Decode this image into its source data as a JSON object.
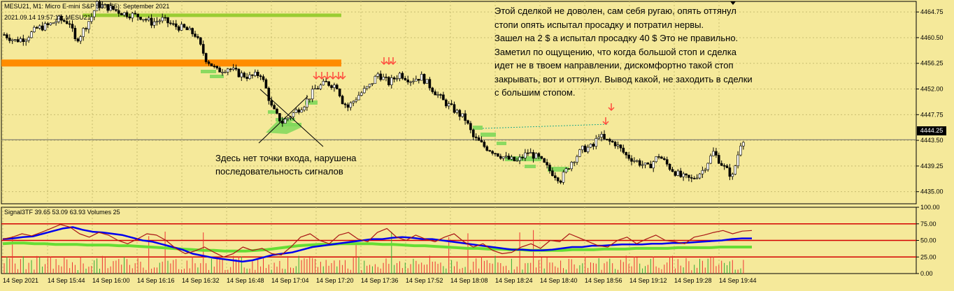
{
  "header": {
    "symbol_line": "MESU21, M1:  Micro E-mini S&P 500 ($5): September 2021",
    "time_line": "2021.09.14 19:57:13; MESU21"
  },
  "comment": {
    "lines": [
      "Этой сделкой не доволен, сам себя ругаю, опять оттянул",
      "стопи опять испытал просадку и потратил нервы.",
      "Зашел на 2 $ а испытал просадку 40 $ Это не правильно.",
      "Заметил по ощущению, что когда большой стоп и сделка",
      "идет не в твоем направлении, дискомфортно такой стоп",
      "закрывать, вот и оттянул.  Вывод какой, не заходить в сделки",
      "с большим стопом."
    ]
  },
  "annotation": {
    "lines": [
      "Здесь нет точки входа, нарушена",
      "последовательность сигналов"
    ]
  },
  "indicator_label": "Signal3TF 39.65 53.09 63.93 Volumes 25",
  "current_price": "4444.25",
  "colors": {
    "background": "#f5e99a",
    "candle": "#000000",
    "hline_green": "#9acd32",
    "hline_orange": "#ff8c00",
    "signal_box": "#7fd85a",
    "arrow": "#ff4a3d",
    "ind_red": "#d40000",
    "ind_blue": "#0000ee",
    "ind_green": "#66dd33",
    "ind_brown": "#aa1515",
    "volume": "#ee3333",
    "volume_green": "#33aa33"
  },
  "chart_data": [
    {
      "type": "candlestick",
      "title": "MESU21, M1",
      "ylim": [
        4433.0,
        4466.5
      ],
      "y_ticks": [
        "4464.75",
        "4460.50",
        "4456.25",
        "4452.00",
        "4447.75",
        "4443.50",
        "4439.25",
        "4435.00"
      ],
      "x_ticks": [
        "14 Sep 2021",
        "14 Sep 15:44",
        "14 Sep 16:00",
        "14 Sep 16:16",
        "14 Sep 16:32",
        "14 Sep 16:48",
        "14 Sep 17:04",
        "14 Sep 17:20",
        "14 Sep 17:36",
        "14 Sep 17:52",
        "14 Sep 18:08",
        "14 Sep 18:24",
        "14 Sep 18:40",
        "14 Sep 18:56",
        "14 Sep 19:12",
        "14 Sep 19:28",
        "14 Sep 19:44"
      ],
      "close_path": [
        [
          0,
          4461
        ],
        [
          4,
          4460
        ],
        [
          8,
          4460.5
        ],
        [
          12,
          4462
        ],
        [
          16,
          4462.5
        ],
        [
          20,
          4463.5
        ],
        [
          24,
          4463
        ],
        [
          26,
          4460
        ],
        [
          28,
          4461
        ],
        [
          32,
          4464
        ],
        [
          34,
          4466
        ],
        [
          38,
          4465.5
        ],
        [
          44,
          4464.5
        ],
        [
          50,
          4464
        ],
        [
          54,
          4463
        ],
        [
          58,
          4463.5
        ],
        [
          62,
          4462.5
        ],
        [
          66,
          4462
        ],
        [
          70,
          4461
        ],
        [
          72,
          4459
        ],
        [
          74,
          4457
        ],
        [
          78,
          4455
        ],
        [
          82,
          4455.5
        ],
        [
          86,
          4454.5
        ],
        [
          90,
          4454
        ],
        [
          94,
          4454.5
        ],
        [
          96,
          4452
        ],
        [
          98,
          4449
        ],
        [
          100,
          4447.5
        ],
        [
          102,
          4446.5
        ],
        [
          106,
          4448
        ],
        [
          110,
          4449.5
        ],
        [
          114,
          4452
        ],
        [
          118,
          4453
        ],
        [
          122,
          4452.5
        ],
        [
          124,
          4450
        ],
        [
          126,
          4449
        ],
        [
          130,
          4451
        ],
        [
          134,
          4452.5
        ],
        [
          137,
          4454.5
        ],
        [
          141,
          4453
        ],
        [
          145,
          4454.5
        ],
        [
          149,
          4453.5
        ],
        [
          153,
          4454
        ],
        [
          157,
          4452
        ],
        [
          161,
          4450
        ],
        [
          165,
          4448.5
        ],
        [
          169,
          4447
        ],
        [
          172,
          4444
        ],
        [
          176,
          4442.5
        ],
        [
          180,
          4441.5
        ],
        [
          184,
          4440.5
        ],
        [
          188,
          4440
        ],
        [
          192,
          4441.5
        ],
        [
          196,
          4440.5
        ],
        [
          200,
          4438.5
        ],
        [
          204,
          4437
        ],
        [
          208,
          4440
        ],
        [
          212,
          4442
        ],
        [
          216,
          4442.5
        ],
        [
          218,
          4444.5
        ],
        [
          220,
          4443.5
        ],
        [
          224,
          4443
        ],
        [
          228,
          4441
        ],
        [
          232,
          4440
        ],
        [
          236,
          4439
        ],
        [
          240,
          4441
        ],
        [
          244,
          4439
        ],
        [
          248,
          4437.5
        ],
        [
          252,
          4437
        ],
        [
          256,
          4438.5
        ],
        [
          260,
          4441.5
        ],
        [
          264,
          4439
        ],
        [
          267,
          4437.5
        ],
        [
          270,
          4443
        ],
        [
          272,
          4444.5
        ]
      ],
      "horizontal_levels": [
        {
          "value": 4464.2,
          "color": "green"
        },
        {
          "value": 4456.3,
          "color": "orange"
        },
        {
          "value": 4443.6,
          "color": "gray"
        }
      ]
    },
    {
      "type": "line",
      "title": "Signal3TF",
      "ylim": [
        0,
        100
      ],
      "y_ticks": [
        "100.00",
        "75.00",
        "50.00",
        "25.00",
        "0.00"
      ],
      "levels": [
        75,
        50,
        25
      ],
      "values_shown": [
        39.65,
        53.09,
        63.93
      ],
      "volumes_shown": 25,
      "series": [
        {
          "color": "red",
          "values": [
            52,
            55,
            60,
            57,
            62,
            68,
            74,
            70,
            60,
            55,
            62,
            58,
            50,
            45,
            52,
            60,
            58,
            50,
            38,
            30,
            34,
            40,
            32,
            25,
            30,
            40,
            35,
            38,
            30,
            28,
            40,
            55,
            60,
            50,
            45,
            58,
            62,
            52,
            48,
            62,
            68,
            55,
            50,
            58,
            52,
            48,
            55,
            60,
            48,
            40,
            45,
            35,
            30,
            32,
            40,
            45,
            38,
            50,
            48,
            60,
            54,
            48,
            42,
            40,
            50,
            55,
            45,
            52,
            58,
            50,
            48,
            45,
            55,
            58,
            62,
            65,
            60,
            64,
            65
          ]
        },
        {
          "color": "blue",
          "values": [
            52,
            53,
            55,
            56,
            60,
            64,
            68,
            70,
            66,
            63,
            62,
            60,
            58,
            54,
            50,
            48,
            44,
            40,
            36,
            30,
            27,
            24,
            22,
            20,
            18,
            20,
            24,
            28,
            30,
            32,
            36,
            40,
            42,
            44,
            46,
            48,
            50,
            52,
            52,
            54,
            55,
            54,
            52,
            52,
            50,
            48,
            46,
            44,
            42,
            40,
            38,
            36,
            36,
            35,
            35,
            36,
            38,
            40,
            40,
            42,
            42,
            43,
            44,
            44,
            44,
            45,
            45,
            46,
            46,
            47,
            48,
            49,
            50,
            52,
            53,
            53
          ]
        },
        {
          "color": "green",
          "values": [
            45,
            46,
            46,
            45,
            45,
            44,
            44,
            44,
            43,
            43,
            43,
            42,
            42,
            41,
            40,
            39,
            38,
            37,
            36,
            35,
            35,
            34,
            34,
            34,
            35,
            36,
            38,
            40,
            42,
            43,
            44,
            44,
            45,
            45,
            45,
            45,
            44,
            44,
            43,
            42,
            42,
            41,
            40,
            39,
            38,
            38,
            37,
            37,
            36,
            36,
            35,
            35,
            35,
            35,
            36,
            36,
            36,
            37,
            37,
            37,
            38,
            38,
            38,
            38,
            39,
            39,
            39,
            39,
            40,
            40,
            40,
            40
          ]
        }
      ]
    }
  ]
}
